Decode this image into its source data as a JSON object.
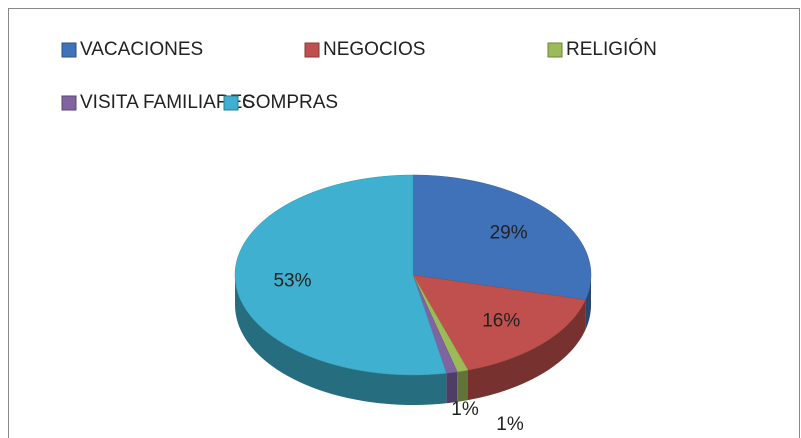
{
  "chart_data": {
    "type": "pie3d",
    "categories": [
      "VACACIONES",
      "NEGOCIOS",
      "RELIGIÓN",
      "VISITA FAMILIARES",
      "COMPRAS"
    ],
    "values": [
      29,
      16,
      1,
      1,
      53
    ],
    "value_labels": [
      "29%",
      "16%",
      "1%",
      "1%",
      "53%"
    ],
    "colors": [
      "#3f72b8",
      "#c0504d",
      "#9bbb59",
      "#8064a2",
      "#3fb0cf"
    ],
    "legend": "top"
  }
}
